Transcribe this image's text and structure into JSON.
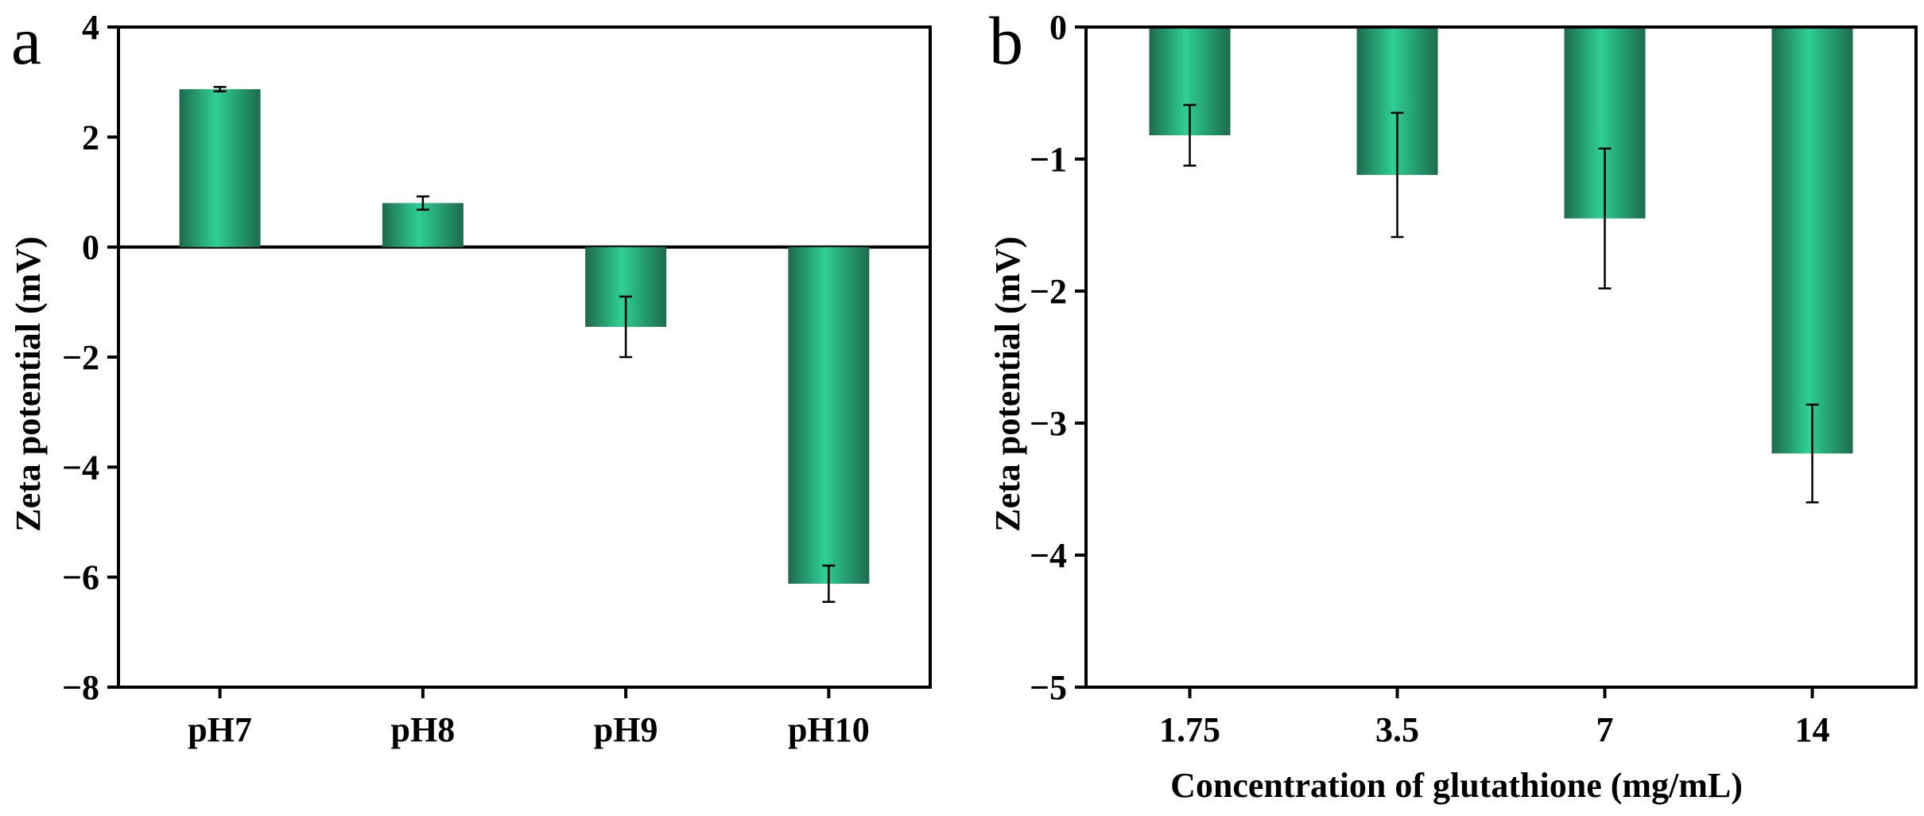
{
  "colors": {
    "bar_dark": "#1d6b4d",
    "bar_light": "#2ecf95",
    "axis": "#000000"
  },
  "chart_data": [
    {
      "panel_label": "a",
      "type": "bar",
      "title": "",
      "xlabel": "",
      "ylabel": "Zeta potential (mV)",
      "ylim": [
        -8,
        4
      ],
      "yticks": [
        4,
        2,
        0,
        -2,
        -4,
        -6,
        -8
      ],
      "ytick_labels": [
        "4",
        "2",
        "0",
        "−2",
        "−4",
        "−6",
        "−8"
      ],
      "categories": [
        "pH7",
        "pH8",
        "pH9",
        "pH10"
      ],
      "values": [
        2.87,
        0.8,
        -1.45,
        -6.12
      ],
      "errors": [
        0.04,
        0.12,
        0.55,
        0.33
      ],
      "grid": false,
      "zero_line": true
    },
    {
      "panel_label": "b",
      "type": "bar",
      "title": "",
      "xlabel": "Concentration of glutathione (mg/mL)",
      "ylabel": "Zeta potential (mV)",
      "ylim": [
        -5,
        0
      ],
      "yticks": [
        0,
        -1,
        -2,
        -3,
        -4,
        -5
      ],
      "ytick_labels": [
        "0",
        "−1",
        "−2",
        "−3",
        "−4",
        "−5"
      ],
      "categories": [
        "1.75",
        "3.5",
        "7",
        "14"
      ],
      "values": [
        -0.82,
        -1.12,
        -1.45,
        -3.23
      ],
      "errors": [
        0.23,
        0.47,
        0.53,
        0.37
      ],
      "grid": false,
      "zero_line": false
    }
  ]
}
